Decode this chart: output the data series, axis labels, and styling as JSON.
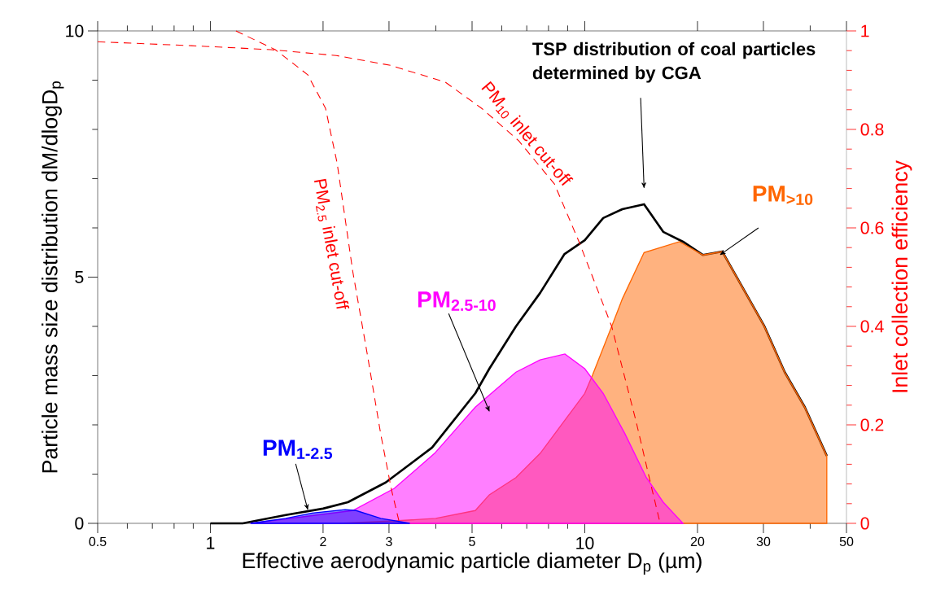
{
  "chart_data": {
    "type": "line",
    "xlabel": "Effective aerodynamic particle diameter D$_{p}$ (µm)",
    "ylabel": "Particle mass size distribution dM/dlogD$_{p}$",
    "y2label": "Inlet collection efficiency",
    "log": "x",
    "xlim": [
      0.5,
      50
    ],
    "ylim": [
      0,
      10
    ],
    "y2lim": [
      0,
      1
    ],
    "xticks": [
      0.5,
      {
        "value": 0.6,
        "label": null
      },
      {
        "value": 0.7,
        "label": null
      },
      {
        "value": 0.8,
        "label": null
      },
      {
        "value": 0.9,
        "label": null
      },
      1,
      2,
      3,
      {
        "value": 4,
        "label": null
      },
      5,
      {
        "value": 6,
        "label": null
      },
      {
        "value": 7,
        "label": null
      },
      {
        "value": 8,
        "label": null
      },
      {
        "value": 9,
        "label": null
      },
      10,
      20,
      30,
      {
        "value": 40,
        "label": null
      },
      50
    ],
    "yticks": [
      0,
      {
        "value": 1,
        "label": null
      },
      {
        "value": 2,
        "label": null
      },
      {
        "value": 3,
        "label": null
      },
      {
        "value": 4,
        "label": null
      },
      5,
      {
        "value": 6,
        "label": null
      },
      {
        "value": 7,
        "label": null
      },
      {
        "value": 8,
        "label": null
      },
      {
        "value": 9,
        "label": null
      },
      10
    ],
    "y2ticks": [
      0,
      {
        "value": 0.04,
        "label": null
      },
      {
        "value": 0.08,
        "label": null
      },
      {
        "value": 0.12,
        "label": null
      },
      {
        "value": 0.16,
        "label": null
      },
      0.2,
      {
        "value": 0.24,
        "label": null
      },
      {
        "value": 0.28,
        "label": null
      },
      {
        "value": 0.32,
        "label": null
      },
      {
        "value": 0.36,
        "label": null
      },
      0.4,
      {
        "value": 0.44,
        "label": null
      },
      {
        "value": 0.48,
        "label": null
      },
      {
        "value": 0.52,
        "label": null
      },
      {
        "value": 0.56,
        "label": null
      },
      0.6,
      {
        "value": 0.64,
        "label": null
      },
      {
        "value": 0.68,
        "label": null
      },
      {
        "value": 0.72,
        "label": null
      },
      {
        "value": 0.76,
        "label": null
      },
      0.8,
      {
        "value": 0.84,
        "label": null
      },
      {
        "value": 0.88,
        "label": null
      },
      {
        "value": 0.92,
        "label": null
      },
      {
        "value": 0.96,
        "label": null
      },
      1
    ],
    "series": [
      {
        "name": "TSP distribution of coal particles determined by CGA",
        "type": "line",
        "color": "#000000",
        "x": [
          1,
          1.22,
          1.59,
          2.0,
          2.33,
          2.94,
          3.91,
          5.1,
          5.56,
          6.55,
          7.6,
          8.83,
          10,
          11.2,
          12.6,
          14.4,
          16.2,
          18.3,
          20.7,
          23.3,
          30.1,
          34.2,
          38.7,
          44.3
        ],
        "values": [
          0,
          0,
          0.17,
          0.3,
          0.43,
          0.83,
          1.54,
          2.64,
          3.14,
          4.0,
          4.68,
          5.47,
          5.75,
          6.2,
          6.38,
          6.48,
          5.92,
          5.72,
          5.45,
          5.52,
          4.02,
          3.07,
          2.36,
          1.37
        ]
      },
      {
        "name": "PM$_{>10}$",
        "type": "area",
        "color": "#ff6600",
        "x": [
          2.2,
          3.1,
          4.0,
          5.1,
          5.56,
          6.55,
          7.6,
          9.0,
          10,
          10.5,
          11.8,
          12.6,
          14.4,
          17.9,
          20.7,
          23.3,
          30.1,
          34.2,
          38.7,
          44.3
        ],
        "values": [
          0,
          0.05,
          0.1,
          0.26,
          0.58,
          0.93,
          1.42,
          2.17,
          2.64,
          3.02,
          4.0,
          4.56,
          5.5,
          5.72,
          5.45,
          5.52,
          4.02,
          3.07,
          2.36,
          1.37
        ]
      },
      {
        "name": "PM$_{2.5-10}$",
        "type": "area",
        "color": "#ff00ff",
        "x": [
          1.28,
          2.4,
          3.1,
          3.97,
          5.1,
          6.55,
          7.6,
          8.85,
          10,
          11.2,
          12.8,
          14.6,
          16.2,
          18.3
        ],
        "values": [
          0,
          0.26,
          0.71,
          1.42,
          2.36,
          3.07,
          3.32,
          3.44,
          3.14,
          2.64,
          1.82,
          0.93,
          0.43,
          0
        ]
      },
      {
        "name": "PM$_{1-2.5}$",
        "type": "area",
        "color": "#0000ff",
        "x": [
          1.28,
          1.59,
          1.87,
          2.29,
          2.45,
          2.85,
          3.41
        ],
        "values": [
          0,
          0.1,
          0.21,
          0.28,
          0.26,
          0.1,
          0
        ]
      },
      {
        "name": "PM$_{2.5}$ inlet cut-off",
        "type": "line",
        "axis": "y2",
        "line_style": "dashed",
        "color": "#ff0000",
        "x": [
          1.17,
          1.49,
          1.82,
          2.03,
          2.18,
          2.4,
          2.62,
          2.85,
          3.04,
          3.2
        ],
        "values": [
          1.0,
          0.962,
          0.911,
          0.843,
          0.732,
          0.512,
          0.347,
          0.182,
          0.071,
          0
        ]
      },
      {
        "name": "PM$_{10}$ inlet cut-off",
        "type": "line",
        "axis": "y2",
        "line_style": "dashed",
        "color": "#ff0000",
        "x": [
          0.5,
          0.89,
          1.45,
          2.17,
          3.03,
          4.24,
          5.3,
          6.66,
          8.3,
          9.65,
          11.8,
          13.7,
          15.1,
          15.9
        ],
        "values": [
          0.978,
          0.97,
          0.962,
          0.95,
          0.93,
          0.896,
          0.843,
          0.777,
          0.689,
          0.572,
          0.4,
          0.208,
          0.071,
          0
        ]
      }
    ]
  }
}
